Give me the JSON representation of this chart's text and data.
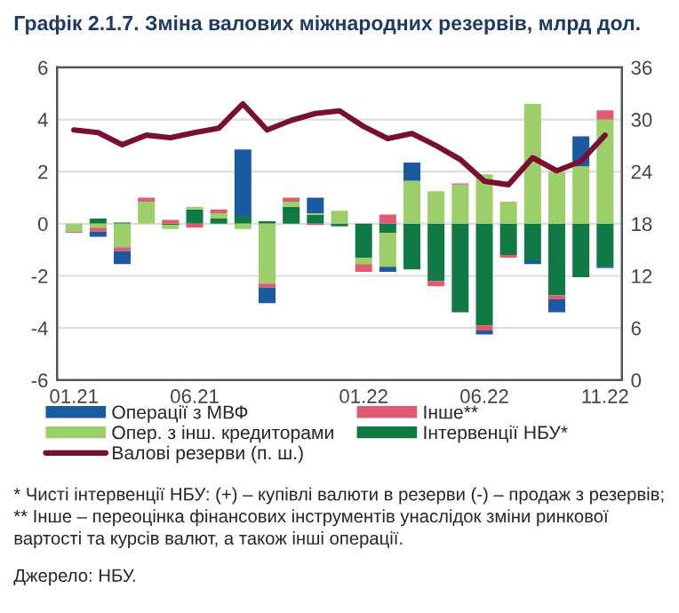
{
  "chart_data": {
    "type": "bar",
    "title": "Графік 2.1.7. Зміна валових міжнародних резервів, млрд дол.",
    "categories": [
      "01.21",
      null,
      null,
      null,
      null,
      "06.21",
      null,
      null,
      null,
      null,
      null,
      null,
      "01.22",
      null,
      null,
      null,
      null,
      "06.22",
      null,
      null,
      null,
      null,
      "11.22"
    ],
    "stacked": true,
    "series": [
      {
        "name": "Інтервенції НБУ*",
        "color": "#107a45",
        "values": [
          0,
          0.2,
          0.05,
          0,
          -0.05,
          0.55,
          0.2,
          0.3,
          0.1,
          0.65,
          0.35,
          -0.1,
          -1.3,
          -0.35,
          -1.75,
          -2.2,
          -3.4,
          -3.9,
          -1.2,
          -1.4,
          -2.75,
          -2.05,
          -1.65
        ]
      },
      {
        "name": "Опер. з інш. кредиторами",
        "color": "#9ccf6a",
        "values": [
          -0.3,
          -0.15,
          -0.9,
          0.85,
          -0.15,
          0.1,
          0.2,
          -0.2,
          -2.3,
          0.2,
          0.05,
          0.5,
          -0.25,
          -1.3,
          1.65,
          1.25,
          1.5,
          1.9,
          0.85,
          4.6,
          2.0,
          2.2,
          4.0
        ]
      },
      {
        "name": "Інше**",
        "color": "#e05a70",
        "values": [
          -0.05,
          -0.15,
          -0.15,
          0.15,
          0.15,
          -0.15,
          0.15,
          0,
          -0.15,
          0.15,
          -0.05,
          0,
          -0.3,
          0.35,
          0,
          -0.2,
          0.05,
          -0.2,
          -0.1,
          0,
          -0.15,
          0,
          0.35
        ]
      },
      {
        "name": "Операції з МВФ",
        "color": "#1a5aa0",
        "values": [
          0,
          -0.2,
          -0.5,
          0,
          0,
          0,
          0,
          2.55,
          -0.6,
          0,
          0.6,
          0,
          0,
          -0.2,
          0.7,
          0,
          0,
          -0.15,
          0,
          -0.15,
          -0.5,
          1.15,
          -0.05
        ]
      },
      {
        "name": "Валові резерви (п. ш.)",
        "type": "line",
        "axis": "y2",
        "color": "#7a1030",
        "values": [
          28.8,
          28.5,
          27.1,
          28.2,
          27.9,
          28.5,
          29.0,
          31.8,
          28.8,
          29.9,
          30.7,
          31.0,
          29.2,
          27.8,
          28.4,
          27.0,
          25.4,
          22.9,
          22.5,
          25.6,
          24.1,
          25.2,
          28.2
        ]
      }
    ],
    "ylim": [
      -6,
      6
    ],
    "yticks": [
      -6,
      -4,
      -2,
      0,
      2,
      4,
      6
    ],
    "y2lim": [
      0,
      36
    ],
    "y2ticks": [
      0,
      6,
      12,
      18,
      24,
      30,
      36
    ],
    "grid": "y",
    "legend": "bottom",
    "annotations": [
      "* Чисті інтервенції НБУ: (+) – купівлі валюти в резерви (-) – продаж з резервів; ** Інше – переоцінка фінансових інструментів унаслідок зміни ринкової вартості та курсів валют, а також інші операції.",
      "Джерело: НБУ."
    ]
  }
}
